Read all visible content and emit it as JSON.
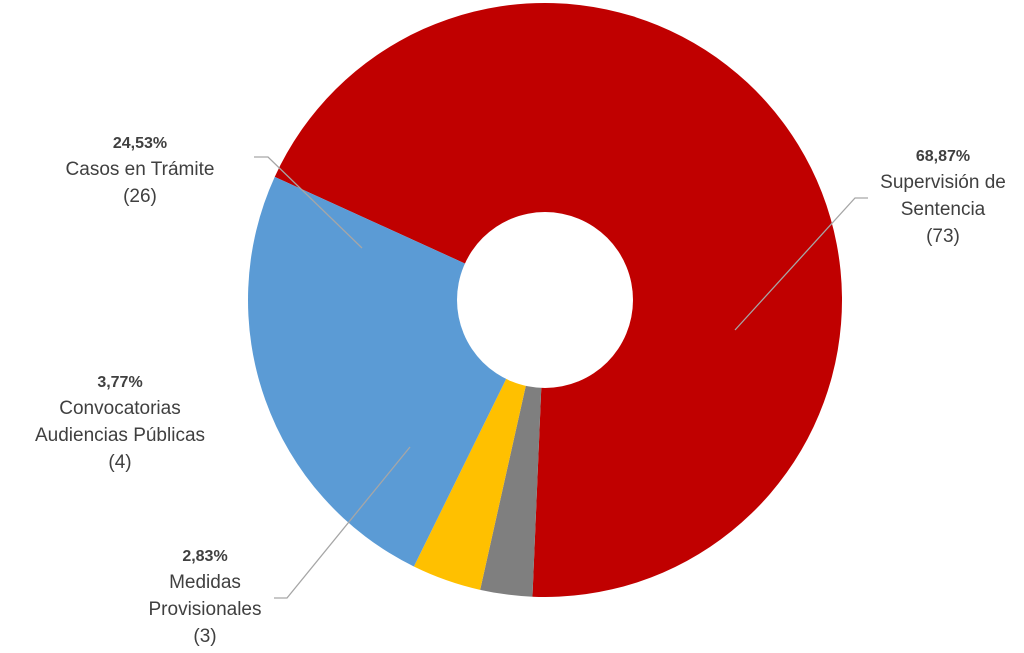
{
  "chart_data": {
    "type": "pie",
    "donut": true,
    "slices": [
      {
        "label": "Supervisión de Sentencia",
        "name_text": "Supervisión de\nSentencia",
        "percent_text": "68,87%",
        "count_text": "(73)",
        "percent": 68.87,
        "value": 73,
        "color": "#c00000"
      },
      {
        "label": "Medidas Provisionales",
        "name_text": "Medidas\nProvisionales",
        "percent_text": "2,83%",
        "count_text": "(3)",
        "percent": 2.83,
        "value": 3,
        "color": "#7f7f7f"
      },
      {
        "label": "Convocatorias Audiencias Públicas",
        "name_text": "Convocatorias\nAudiencias Públicas",
        "percent_text": "3,77%",
        "count_text": "(4)",
        "percent": 3.77,
        "value": 4,
        "color": "#ffc000"
      },
      {
        "label": "Casos en Trámite",
        "name_text": "Casos en Trámite",
        "percent_text": "24,53%",
        "count_text": "(26)",
        "percent": 24.53,
        "value": 26,
        "color": "#5b9bd5"
      }
    ]
  }
}
